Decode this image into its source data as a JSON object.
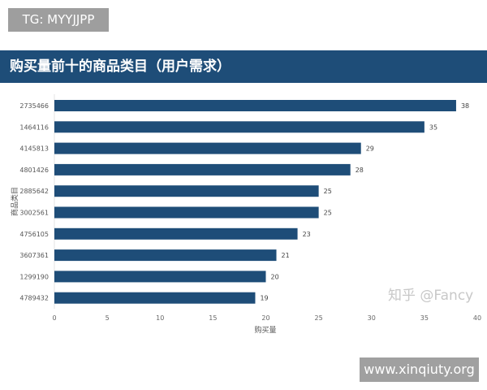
{
  "watermark_tg": "TG: MYYJJPP",
  "watermark_zhihu": "知乎 @Fancy",
  "watermark_site": "www.xinqiuty.org",
  "chart_data": {
    "type": "bar",
    "orientation": "horizontal",
    "title": "购买量前十的商品类目（用户需求）",
    "xlabel": "购买量",
    "ylabel": "商品类目",
    "categories": [
      "2735466",
      "1464116",
      "4145813",
      "4801426",
      "2885642",
      "3002561",
      "4756105",
      "3607361",
      "1299190",
      "4789432"
    ],
    "values": [
      38,
      35,
      29,
      28,
      25,
      25,
      23,
      21,
      20,
      19
    ],
    "xlim": [
      0,
      40
    ],
    "xticks": [
      0,
      5,
      10,
      15,
      20,
      25,
      30,
      35,
      40
    ],
    "data_labels": true,
    "grid": false,
    "bar_color": "#1e4d78",
    "header_color": "#1e4d78"
  }
}
